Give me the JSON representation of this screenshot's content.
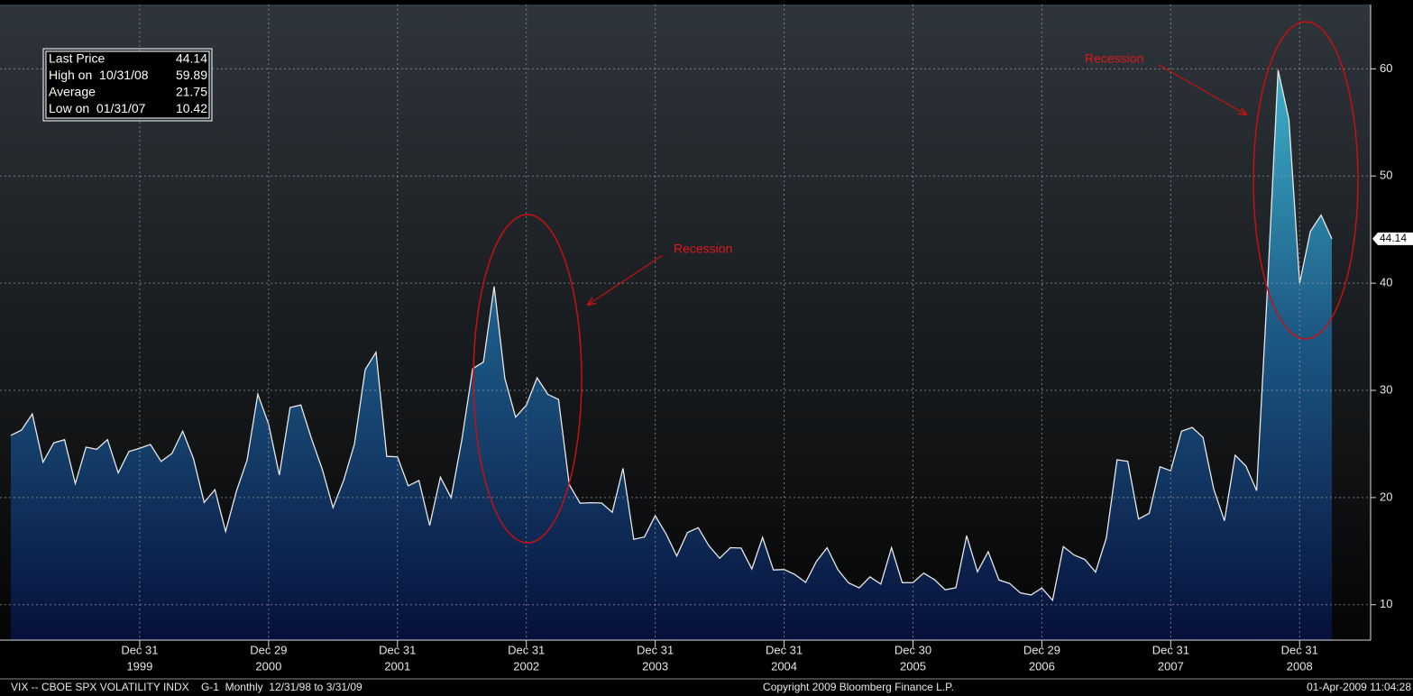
{
  "chart_data": {
    "type": "area",
    "series": [
      {
        "name": "VIX",
        "color": "#e8e8e8",
        "values": [
          25.8,
          26.3,
          27.8,
          23.3,
          25.1,
          25.4,
          21.3,
          24.7,
          24.5,
          25.4,
          22.3,
          24.3,
          24.6,
          24.95,
          23.37,
          24.11,
          26.2,
          23.65,
          19.54,
          20.74,
          16.84,
          20.57,
          23.49,
          29.65,
          26.85,
          22.1,
          28.4,
          28.64,
          25.48,
          22.64,
          19.06,
          21.62,
          25.0,
          31.93,
          33.56,
          23.84,
          23.8,
          21.09,
          21.59,
          17.4,
          21.91,
          19.98,
          25.4,
          32.03,
          32.64,
          39.69,
          31.1,
          27.5,
          28.62,
          31.17,
          29.63,
          29.15,
          21.21,
          19.47,
          19.52,
          19.49,
          18.63,
          22.72,
          16.1,
          16.32,
          18.31,
          16.63,
          14.55,
          16.74,
          17.19,
          15.5,
          14.34,
          15.32,
          15.29,
          13.34,
          16.27,
          13.24,
          13.29,
          12.82,
          12.08,
          14.02,
          15.31,
          13.29,
          12.04,
          11.57,
          12.6,
          11.92,
          15.32,
          12.06,
          12.07,
          12.95,
          12.34,
          11.39,
          11.59,
          16.44,
          13.08,
          14.95,
          12.31,
          11.98,
          11.1,
          10.91,
          11.56,
          10.42,
          15.42,
          14.64,
          14.22,
          13.05,
          16.23,
          23.52,
          23.38,
          18.0,
          18.53,
          22.87,
          22.5,
          26.2,
          26.54,
          25.61,
          20.79,
          17.83,
          23.95,
          22.94,
          20.65,
          39.39,
          59.89,
          55.28,
          40.0,
          44.84,
          46.35,
          44.14
        ]
      }
    ],
    "ylim": [
      6.7,
      66
    ],
    "yticks": [
      10,
      20,
      30,
      40,
      50,
      60
    ],
    "xticks": [
      {
        "value": 12,
        "label": "Dec 31",
        "year": "1999"
      },
      {
        "value": 24,
        "label": "Dec 29",
        "year": "2000"
      },
      {
        "value": 36,
        "label": "Dec 31",
        "year": "2001"
      },
      {
        "value": 48,
        "label": "Dec 31",
        "year": "2002"
      },
      {
        "value": 60,
        "label": "Dec 31",
        "year": "2003"
      },
      {
        "value": 72,
        "label": "Dec 31",
        "year": "2004"
      },
      {
        "value": 84,
        "label": "Dec 30",
        "year": "2005"
      },
      {
        "value": 96,
        "label": "Dec 29",
        "year": "2006"
      },
      {
        "value": 108,
        "label": "Dec 31",
        "year": "2007"
      },
      {
        "value": 120,
        "label": "Dec 31",
        "year": "2008"
      }
    ],
    "grid": true,
    "annotations": [
      "Recession",
      "Recession"
    ]
  },
  "stats": [
    {
      "label": "Last Price",
      "value": "44.14"
    },
    {
      "label": "High on  10/31/08",
      "value": "59.89"
    },
    {
      "label": "Average",
      "value": "21.75"
    },
    {
      "label": "Low on  01/31/07",
      "value": "10.42"
    }
  ],
  "footer": {
    "left": "VIX -- CBOE SPX VOLATILITY INDX    G-1  Monthly  12/31/98 to 3/31/09",
    "center": "Copyright 2009 Bloomberg Finance L.P.",
    "right": "01-Apr-2009 11:04:28"
  }
}
